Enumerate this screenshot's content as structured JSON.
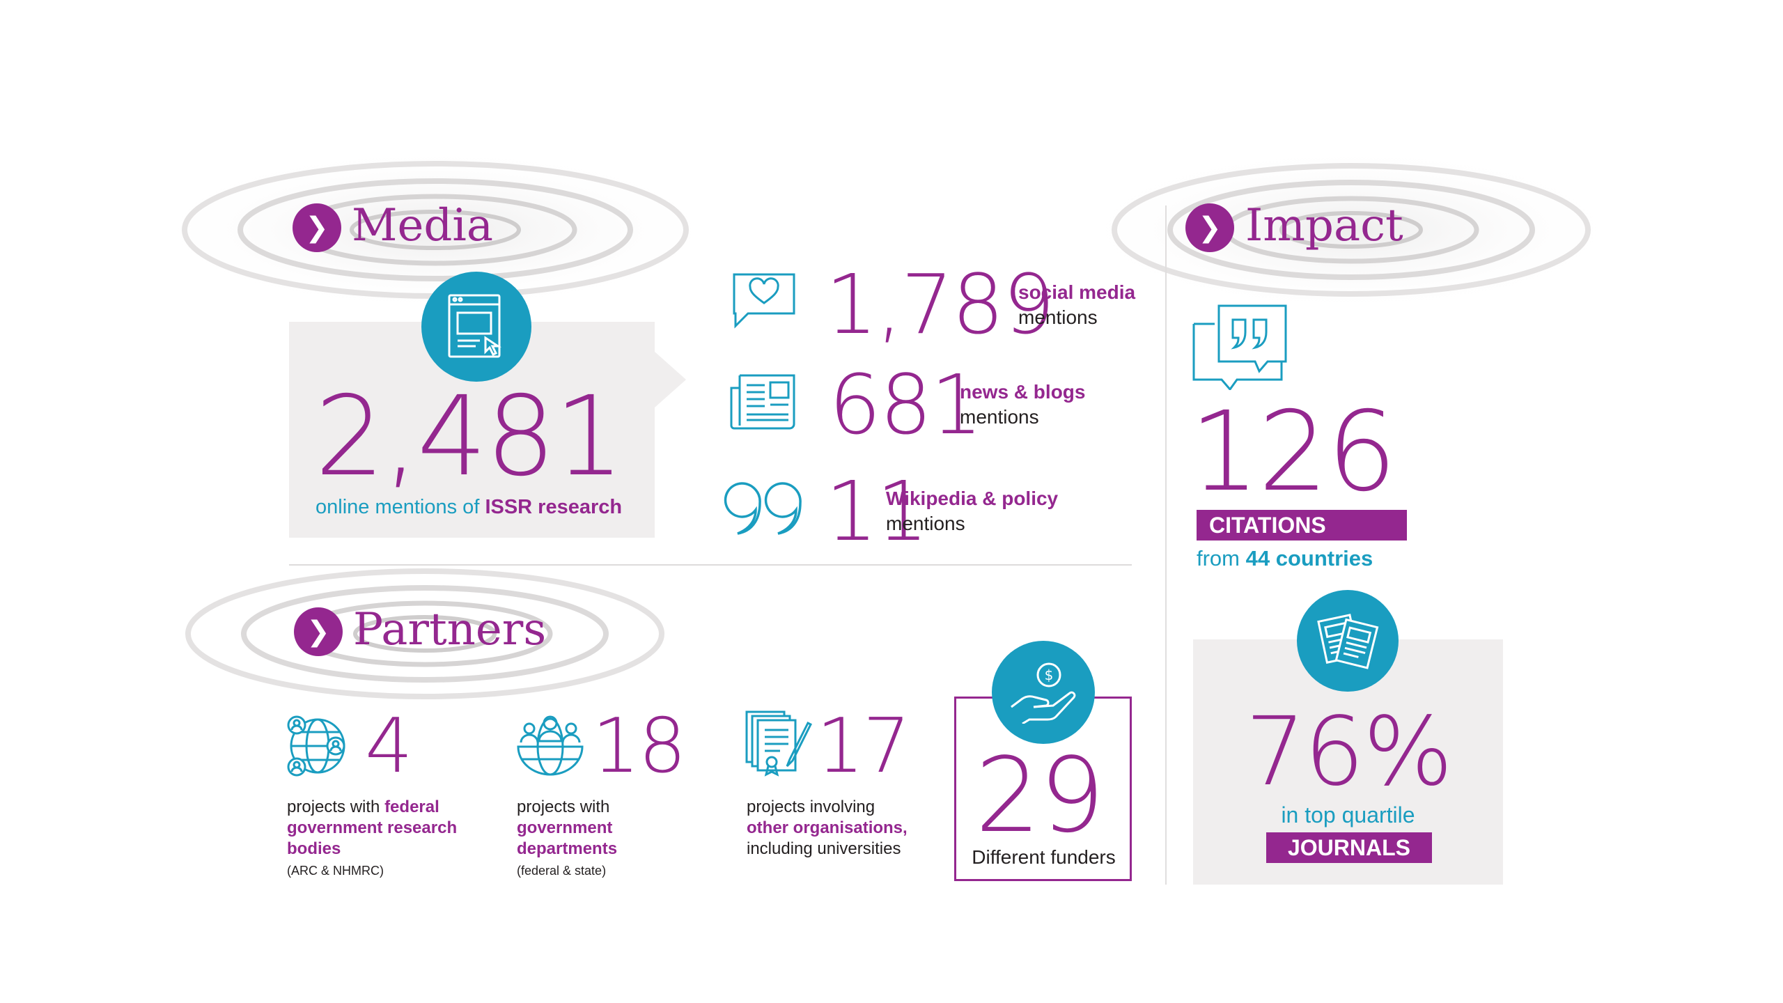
{
  "media": {
    "heading": "Media",
    "main": {
      "value": "2,481",
      "caption_prefix": "online mentions of ",
      "caption_bold": "ISSR research"
    },
    "items": [
      {
        "value": "1,789",
        "bold": "social media",
        "rest": "mentions",
        "icon": "chat-heart-icon"
      },
      {
        "value": "681",
        "bold": "news & blogs",
        "rest": "mentions",
        "icon": "newspaper-icon"
      },
      {
        "value": "11",
        "bold": "Wikipedia & policy",
        "rest": "mentions",
        "icon": "quote-icon"
      }
    ]
  },
  "partners": {
    "heading": "Partners",
    "items": [
      {
        "value": "4",
        "prefix": "projects with ",
        "bold": "federal government research bodies",
        "note": "(ARC & NHMRC)",
        "icon": "globe-people-icon"
      },
      {
        "value": "18",
        "prefix": "projects with",
        "bold": "government departments",
        "note": "(federal & state)",
        "icon": "group-globe-icon"
      },
      {
        "value": "17",
        "prefix": "projects involving",
        "bold": "other organisations,",
        "rest": "including universities",
        "icon": "certificate-icon"
      }
    ],
    "funders": {
      "value": "29",
      "label": "Different funders",
      "icon": "hand-money-icon"
    }
  },
  "impact": {
    "heading": "Impact",
    "citations": {
      "value": "126",
      "banner": "CITATIONS",
      "from_prefix": "from ",
      "from_bold": "44 countries",
      "icon": "quote-bubble-icon"
    },
    "journals": {
      "value": "76%",
      "caption": "in top quartile",
      "banner": "JOURNALS",
      "icon": "documents-icon"
    }
  },
  "colors": {
    "purple": "#94278f",
    "teal": "#1a9dc0",
    "grey_panel": "#f0eeee"
  }
}
